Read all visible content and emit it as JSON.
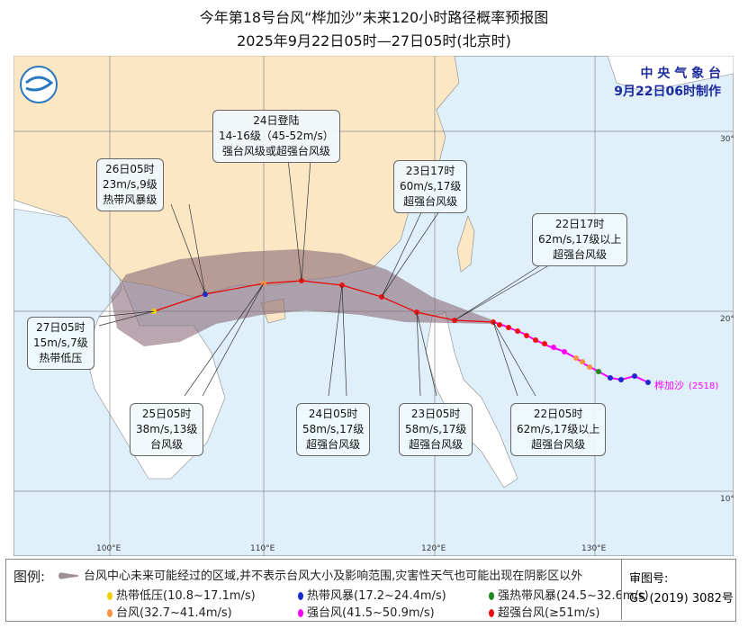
{
  "title": "今年第18号台风“桦加沙”未来120小时路径概率预报图",
  "subtitle": "2025年9月22日05时—27日05时(北京时)",
  "agency": {
    "name": "中 央 气 象 台",
    "made": "9月22日06时制作"
  },
  "typhoon": {
    "name": "桦加沙",
    "code": "(2518)",
    "color": "#ff00ff"
  },
  "axes": {
    "lon": [
      "100°E",
      "110°E",
      "120°E",
      "130°E"
    ],
    "lat": [
      "30°N",
      "20°N",
      "10°N"
    ]
  },
  "annotations": [
    {
      "time": "24日登陆",
      "speed": "14-16级（45-52m/s）",
      "level": "强台风级或超强台风级"
    },
    {
      "time": "26日05时",
      "speed": "23m/s,9级",
      "level": "热带风暴级"
    },
    {
      "time": "23日17时",
      "speed": "60m/s,17级",
      "level": "超强台风级"
    },
    {
      "time": "22日17时",
      "speed": "62m/s,17级以上",
      "level": "超强台风级"
    },
    {
      "time": "27日05时",
      "speed": "15m/s,7级",
      "level": "热带低压"
    },
    {
      "time": "25日05时",
      "speed": "38m/s,13级",
      "level": "台风级"
    },
    {
      "time": "24日05时",
      "speed": "58m/s,17级",
      "level": "超强台风级"
    },
    {
      "time": "23日05时",
      "speed": "58m/s,17级",
      "level": "超强台风级"
    },
    {
      "time": "22日05时",
      "speed": "62m/s,17级以上",
      "level": "超强台风级"
    }
  ],
  "legend": {
    "label": "图例:",
    "cone": "台风中心未来可能经过的区域,并不表示台风大小及影响范围,灾害性天气也可能出现在阴影区以外",
    "items": [
      {
        "label": "热带低压(10.8~17.1m/s)",
        "color": "#f0d000"
      },
      {
        "label": "热带风暴(17.2~24.4m/s)",
        "color": "#1a2ad0"
      },
      {
        "label": "强热带风暴(24.5~32.6m/s)",
        "color": "#1a8a1a"
      },
      {
        "label": "台风(32.7~41.4m/s)",
        "color": "#ff9040"
      },
      {
        "label": "强台风(41.5~50.9m/s)",
        "color": "#ff00ff"
      },
      {
        "label": "超强台风(≥51m/s)",
        "color": "#ee1111"
      }
    ]
  },
  "approval": {
    "label": "审图号:",
    "number": "GS (2019) 3082号"
  }
}
